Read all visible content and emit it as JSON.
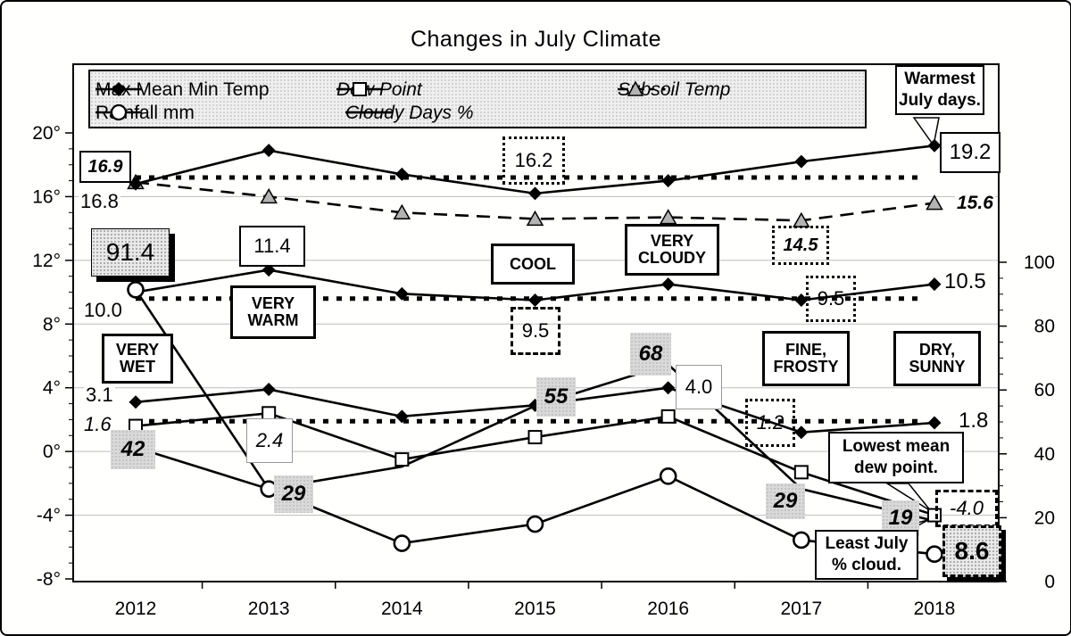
{
  "title": "Changes in July Climate",
  "legend": {
    "items": [
      {
        "label": "Max Mean Min Temp",
        "marker": "diamond"
      },
      {
        "label": "Dew Point",
        "marker": "square"
      },
      {
        "label": "Subsoil Temp",
        "marker": "triangle"
      },
      {
        "label": "Rainfall mm",
        "marker": "circle"
      },
      {
        "label": "Cloudy Days %",
        "marker": "line"
      }
    ]
  },
  "chart_data": {
    "type": "line",
    "categories": [
      "2012",
      "2013",
      "2014",
      "2015",
      "2016",
      "2017",
      "2018"
    ],
    "series": [
      {
        "name": "Max Temp",
        "legend_group": "Max Mean Min Temp",
        "marker": "diamond",
        "axis": "left",
        "values": [
          16.8,
          18.9,
          17.4,
          16.2,
          17.0,
          18.2,
          19.2
        ]
      },
      {
        "name": "Mean Temp",
        "legend_group": "Max Mean Min Temp",
        "marker": "diamond",
        "axis": "left",
        "values": [
          10.0,
          11.4,
          9.9,
          9.5,
          10.5,
          9.5,
          10.5
        ]
      },
      {
        "name": "Min Temp",
        "legend_group": "Max Mean Min Temp",
        "marker": "diamond",
        "axis": "left",
        "values": [
          3.1,
          3.9,
          2.2,
          2.9,
          4.0,
          1.2,
          1.8
        ]
      },
      {
        "name": "Dew Point",
        "marker": "square",
        "axis": "left",
        "values": [
          1.6,
          2.4,
          -0.5,
          0.9,
          2.2,
          -1.3,
          -4.0
        ]
      },
      {
        "name": "Subsoil Temp",
        "marker": "triangle",
        "axis": "left",
        "dash": true,
        "values": [
          16.9,
          16.0,
          15.0,
          14.6,
          14.7,
          14.5,
          15.6
        ]
      },
      {
        "name": "Rainfall mm",
        "marker": "circle",
        "axis": "right",
        "values": [
          91.4,
          29,
          12,
          18,
          33,
          13,
          8.6
        ]
      },
      {
        "name": "Cloudy Days %",
        "marker": "none",
        "axis": "right",
        "values": [
          42,
          29,
          36,
          55,
          68,
          29,
          19
        ]
      }
    ],
    "left_axis": {
      "tick_labels": [
        "20°",
        "16°",
        "12°",
        "8°",
        "4°",
        "0°",
        "-4°",
        "-8°"
      ],
      "tick_values": [
        20,
        16,
        12,
        8,
        4,
        0,
        -4,
        -8
      ],
      "range": [
        -8,
        20
      ]
    },
    "right_axis": {
      "tick_labels": [
        "100",
        "80",
        "60",
        "40",
        "20",
        "0"
      ],
      "tick_values": [
        100,
        80,
        60,
        40,
        20,
        0
      ],
      "range": [
        0,
        100
      ]
    },
    "reference_lines": [
      {
        "axis": "left",
        "value": 17.2,
        "style": "dotted"
      },
      {
        "axis": "left",
        "value": 9.6,
        "style": "dotted"
      },
      {
        "axis": "left",
        "value": 1.9,
        "style": "dotted"
      }
    ],
    "grid": "horizontal-major",
    "legend_position": "top"
  },
  "annotations": [
    {
      "text": "16.9"
    },
    {
      "text": "16.8"
    },
    {
      "text": "91.4"
    },
    {
      "text": "10.0"
    },
    {
      "text": "VERY WET"
    },
    {
      "text": "3.1"
    },
    {
      "text": "1.6"
    },
    {
      "text": "42"
    },
    {
      "text": "11.4"
    },
    {
      "text": "VERY WARM"
    },
    {
      "text": "2.4"
    },
    {
      "text": "29"
    },
    {
      "text": "16.2"
    },
    {
      "text": "COOL"
    },
    {
      "text": "9.5"
    },
    {
      "text": "55"
    },
    {
      "text": "VERY CLOUDY"
    },
    {
      "text": "68"
    },
    {
      "text": "4.0"
    },
    {
      "text": "14.5"
    },
    {
      "text": "9.5"
    },
    {
      "text": "FINE, FROSTY"
    },
    {
      "text": "1.2"
    },
    {
      "text": "29"
    },
    {
      "text": "Lowest mean dew point."
    },
    {
      "text": "-4.0"
    },
    {
      "text": "19"
    },
    {
      "text": "Least July % cloud."
    },
    {
      "text": "8.6"
    },
    {
      "text": "DRY, SUNNY"
    },
    {
      "text": "Warmest July days."
    },
    {
      "text": "19.2"
    },
    {
      "text": "15.6"
    },
    {
      "text": "10.5"
    },
    {
      "text": "1.8"
    }
  ]
}
